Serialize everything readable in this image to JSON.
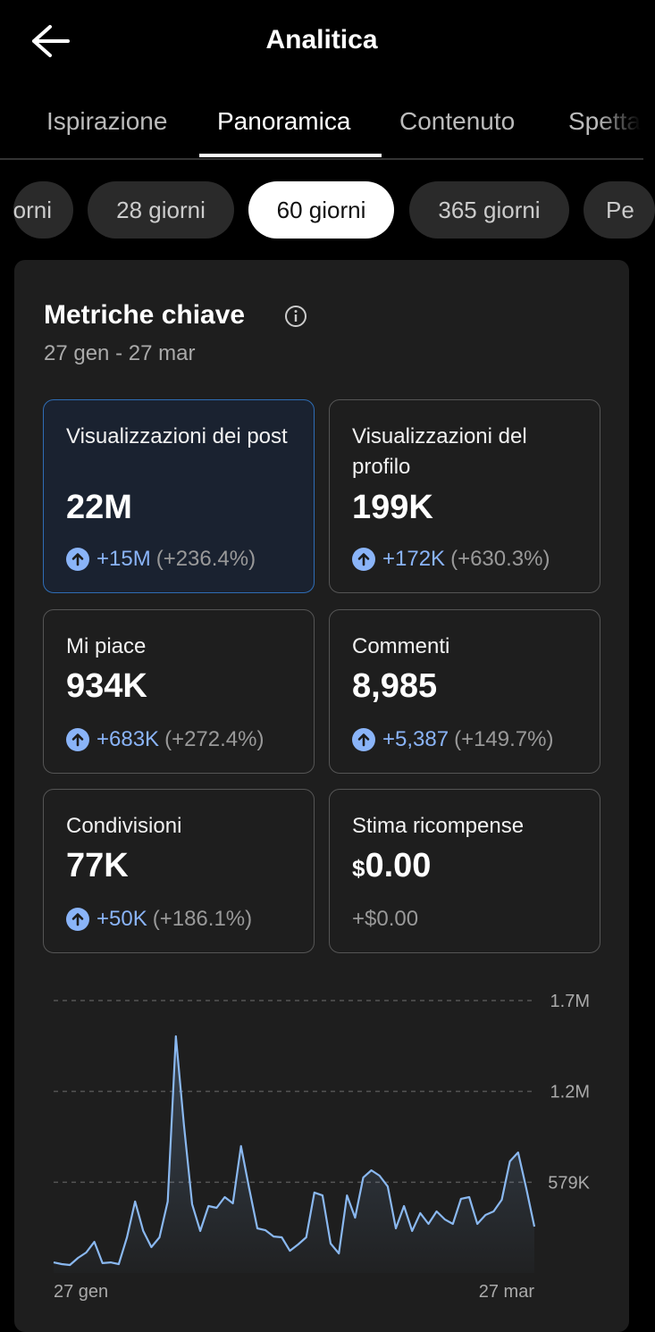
{
  "header": {
    "title": "Analitica"
  },
  "tabs": [
    "Ispirazione",
    "Panoramica",
    "Contenuto",
    "Spetta"
  ],
  "active_tab": 1,
  "chips": [
    "orni",
    "28 giorni",
    "60 giorni",
    "365 giorni",
    "Pe"
  ],
  "active_chip": 2,
  "card": {
    "title": "Metriche chiave",
    "date_range": "27 gen - 27 mar",
    "tiles": [
      {
        "label": "Visualizzazioni dei post",
        "value": "22M",
        "delta": "+15M",
        "delta_pct": "(+236.4%)"
      },
      {
        "label": "Visualizzazioni del profilo",
        "value": "199K",
        "delta": "+172K",
        "delta_pct": "(+630.3%)"
      },
      {
        "label": "Mi piace",
        "value": "934K",
        "delta": "+683K",
        "delta_pct": "(+272.4%)"
      },
      {
        "label": "Commenti",
        "value": "8,985",
        "delta": "+5,387",
        "delta_pct": "(+149.7%)"
      },
      {
        "label": "Condivisioni",
        "value": "77K",
        "delta": "+50K",
        "delta_pct": "(+186.1%)"
      }
    ],
    "reward": {
      "label": "Stima ricompense",
      "currency": "$",
      "value": "0.00",
      "delta": "+$0.00"
    }
  },
  "chart_data": {
    "type": "line",
    "categories": [
      "27 gen",
      null,
      null,
      null,
      null,
      null,
      null,
      null,
      null,
      null,
      null,
      null,
      null,
      null,
      null,
      null,
      null,
      null,
      null,
      null,
      null,
      null,
      null,
      null,
      null,
      null,
      null,
      null,
      null,
      null,
      null,
      null,
      null,
      null,
      null,
      null,
      null,
      null,
      null,
      null,
      null,
      null,
      null,
      null,
      null,
      null,
      null,
      null,
      null,
      null,
      null,
      null,
      null,
      null,
      null,
      null,
      null,
      null,
      null,
      "27 mar"
    ],
    "series": [
      {
        "name": "Visualizzazioni dei post",
        "color": "#8ab8f0",
        "values": [
          68000,
          57000,
          51000,
          97000,
          131000,
          199000,
          63000,
          68000,
          57000,
          228000,
          456000,
          268000,
          165000,
          228000,
          456000,
          1509000,
          940000,
          439000,
          268000,
          427000,
          416000,
          484000,
          444000,
          809000,
          541000,
          285000,
          273000,
          233000,
          228000,
          142000,
          182000,
          228000,
          513000,
          495000,
          188000,
          125000,
          495000,
          353000,
          609000,
          655000,
          621000,
          552000,
          285000,
          427000,
          268000,
          382000,
          313000,
          393000,
          342000,
          313000,
          473000,
          484000,
          313000,
          370000,
          393000,
          467000,
          712000,
          769000,
          541000,
          296000
        ]
      }
    ],
    "ylim": [
      0,
      1737000
    ],
    "yticks": [
      {
        "value": 579000,
        "label": "579K"
      },
      {
        "value": 1158000,
        "label": "1.2M"
      },
      {
        "value": 1737000,
        "label": "1.7M"
      }
    ],
    "grid": true
  }
}
